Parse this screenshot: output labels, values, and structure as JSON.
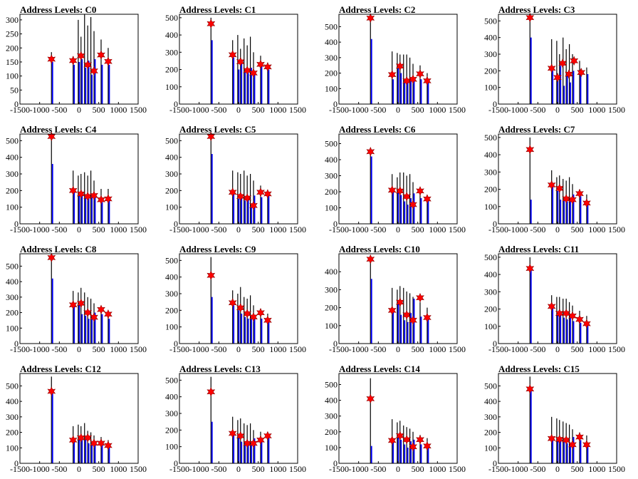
{
  "figure": {
    "x_ticks": [
      "-1500",
      "-1000",
      "-500",
      "0",
      "500",
      "1000",
      "1500"
    ],
    "colors": {
      "black_series": "#000000",
      "blue_series": "#0000ff",
      "marker_fill": "#ff0000",
      "marker_stroke": "#8b0000"
    }
  },
  "chart_data": [
    {
      "type": "bar",
      "title": "Address Levels: C0",
      "xlim": [
        -1500,
        1500
      ],
      "ylim": [
        0,
        320
      ],
      "yticks": [
        0,
        50,
        100,
        150,
        200,
        250,
        300
      ],
      "black_heights": [
        185,
        170,
        300,
        240,
        320,
        280,
        310,
        260,
        230,
        200
      ],
      "blue_heights": [
        150,
        140,
        150,
        160,
        130,
        155,
        105,
        160,
        140,
        140
      ],
      "peaks": [
        {
          "x": -700,
          "y": 160
        },
        {
          "x": -150,
          "y": 155
        },
        {
          "x": 50,
          "y": 172
        },
        {
          "x": 220,
          "y": 140
        },
        {
          "x": 380,
          "y": 118
        },
        {
          "x": 560,
          "y": 175
        },
        {
          "x": 740,
          "y": 152
        }
      ]
    },
    {
      "type": "bar",
      "title": "Address Levels: C1",
      "xlim": [
        -1500,
        1500
      ],
      "ylim": [
        0,
        520
      ],
      "yticks": [
        0,
        100,
        200,
        300,
        400,
        500
      ],
      "black_heights": [
        500,
        370,
        400,
        320,
        380,
        340,
        390,
        300,
        280,
        240
      ],
      "blue_heights": [
        370,
        270,
        200,
        240,
        200,
        180,
        210,
        180,
        220,
        200
      ],
      "peaks": [
        {
          "x": -700,
          "y": 465
        },
        {
          "x": -150,
          "y": 285
        },
        {
          "x": 50,
          "y": 245
        },
        {
          "x": 220,
          "y": 195
        },
        {
          "x": 380,
          "y": 180
        },
        {
          "x": 560,
          "y": 230
        },
        {
          "x": 740,
          "y": 215
        }
      ]
    },
    {
      "type": "bar",
      "title": "Address Levels: C2",
      "xlim": [
        -1500,
        1500
      ],
      "ylim": [
        0,
        580
      ],
      "yticks": [
        0,
        100,
        200,
        300,
        400,
        500
      ],
      "black_heights": [
        580,
        340,
        330,
        320,
        320,
        320,
        300,
        260,
        250,
        200
      ],
      "blue_heights": [
        420,
        160,
        230,
        200,
        160,
        140,
        160,
        170,
        160,
        140
      ],
      "peaks": [
        {
          "x": -700,
          "y": 555
        },
        {
          "x": -150,
          "y": 190
        },
        {
          "x": 50,
          "y": 245
        },
        {
          "x": 220,
          "y": 150
        },
        {
          "x": 380,
          "y": 160
        },
        {
          "x": 560,
          "y": 195
        },
        {
          "x": 740,
          "y": 150
        }
      ]
    },
    {
      "type": "bar",
      "title": "Address Levels: C3",
      "xlim": [
        -1500,
        1500
      ],
      "ylim": [
        0,
        540
      ],
      "yticks": [
        0,
        100,
        200,
        300,
        400,
        500
      ],
      "black_heights": [
        540,
        390,
        380,
        300,
        400,
        330,
        360,
        300,
        260,
        220
      ],
      "blue_heights": [
        400,
        200,
        150,
        230,
        110,
        170,
        130,
        200,
        180,
        180
      ],
      "peaks": [
        {
          "x": -700,
          "y": 520
        },
        {
          "x": -150,
          "y": 215
        },
        {
          "x": 0,
          "y": 160
        },
        {
          "x": 130,
          "y": 245
        },
        {
          "x": 290,
          "y": 180
        },
        {
          "x": 420,
          "y": 260
        },
        {
          "x": 600,
          "y": 190
        }
      ]
    },
    {
      "type": "bar",
      "title": "Address Levels: C4",
      "xlim": [
        -1500,
        1500
      ],
      "ylim": [
        0,
        540
      ],
      "yticks": [
        0,
        100,
        200,
        300,
        400,
        500
      ],
      "black_heights": [
        540,
        320,
        290,
        300,
        310,
        290,
        320,
        260,
        210,
        210
      ],
      "blue_heights": [
        360,
        200,
        170,
        170,
        160,
        150,
        170,
        160,
        130,
        140
      ],
      "peaks": [
        {
          "x": -700,
          "y": 525
        },
        {
          "x": -150,
          "y": 200
        },
        {
          "x": 50,
          "y": 180
        },
        {
          "x": 220,
          "y": 165
        },
        {
          "x": 380,
          "y": 170
        },
        {
          "x": 560,
          "y": 145
        },
        {
          "x": 740,
          "y": 150
        }
      ]
    },
    {
      "type": "bar",
      "title": "Address Levels: C5",
      "xlim": [
        -1500,
        1500
      ],
      "ylim": [
        0,
        540
      ],
      "yticks": [
        0,
        100,
        200,
        300,
        400,
        500
      ],
      "black_heights": [
        540,
        320,
        310,
        300,
        320,
        290,
        300,
        260,
        230,
        200
      ],
      "blue_heights": [
        420,
        190,
        150,
        160,
        140,
        150,
        110,
        170,
        160,
        170
      ],
      "peaks": [
        {
          "x": -700,
          "y": 525
        },
        {
          "x": -150,
          "y": 190
        },
        {
          "x": 50,
          "y": 165
        },
        {
          "x": 220,
          "y": 155
        },
        {
          "x": 380,
          "y": 110
        },
        {
          "x": 560,
          "y": 190
        },
        {
          "x": 740,
          "y": 180
        }
      ]
    },
    {
      "type": "bar",
      "title": "Address Levels: C6",
      "xlim": [
        -1500,
        1500
      ],
      "ylim": [
        0,
        560
      ],
      "yticks": [
        0,
        100,
        200,
        300,
        400,
        500
      ],
      "black_heights": [
        470,
        310,
        290,
        320,
        320,
        300,
        310,
        260,
        220,
        180
      ],
      "blue_heights": [
        420,
        200,
        200,
        180,
        140,
        120,
        160,
        190,
        160,
        150
      ],
      "peaks": [
        {
          "x": -700,
          "y": 450
        },
        {
          "x": -150,
          "y": 210
        },
        {
          "x": 50,
          "y": 205
        },
        {
          "x": 220,
          "y": 170
        },
        {
          "x": 380,
          "y": 120
        },
        {
          "x": 560,
          "y": 205
        },
        {
          "x": 740,
          "y": 155
        }
      ]
    },
    {
      "type": "bar",
      "title": "Address Levels: C7",
      "xlim": [
        -1500,
        1500
      ],
      "ylim": [
        0,
        520
      ],
      "yticks": [
        0,
        100,
        200,
        300,
        400,
        500
      ],
      "black_heights": [
        500,
        310,
        270,
        280,
        260,
        250,
        270,
        230,
        200,
        170
      ],
      "blue_heights": [
        140,
        220,
        190,
        140,
        140,
        130,
        130,
        170,
        160,
        120
      ],
      "peaks": [
        {
          "x": -700,
          "y": 430
        },
        {
          "x": -150,
          "y": 225
        },
        {
          "x": 50,
          "y": 205
        },
        {
          "x": 220,
          "y": 145
        },
        {
          "x": 380,
          "y": 140
        },
        {
          "x": 560,
          "y": 175
        },
        {
          "x": 740,
          "y": 120
        }
      ]
    },
    {
      "type": "bar",
      "title": "Address Levels: C8",
      "xlim": [
        -1500,
        1500
      ],
      "ylim": [
        0,
        580
      ],
      "yticks": [
        0,
        100,
        200,
        300,
        400,
        500
      ],
      "black_heights": [
        580,
        340,
        330,
        360,
        330,
        300,
        290,
        260,
        240,
        200
      ],
      "blue_heights": [
        420,
        240,
        250,
        190,
        180,
        160,
        180,
        200,
        190,
        160
      ],
      "peaks": [
        {
          "x": -700,
          "y": 555
        },
        {
          "x": -150,
          "y": 250
        },
        {
          "x": 50,
          "y": 260
        },
        {
          "x": 220,
          "y": 200
        },
        {
          "x": 380,
          "y": 170
        },
        {
          "x": 560,
          "y": 220
        },
        {
          "x": 740,
          "y": 190
        }
      ]
    },
    {
      "type": "bar",
      "title": "Address Levels: C9",
      "xlim": [
        -1500,
        1500
      ],
      "ylim": [
        0,
        540
      ],
      "yticks": [
        0,
        100,
        200,
        300,
        400,
        500
      ],
      "black_heights": [
        520,
        320,
        300,
        340,
        280,
        270,
        290,
        230,
        210,
        180
      ],
      "blue_heights": [
        280,
        230,
        200,
        180,
        160,
        150,
        160,
        170,
        150,
        140
      ],
      "peaks": [
        {
          "x": -700,
          "y": 410
        },
        {
          "x": -150,
          "y": 245
        },
        {
          "x": 50,
          "y": 215
        },
        {
          "x": 220,
          "y": 180
        },
        {
          "x": 380,
          "y": 160
        },
        {
          "x": 560,
          "y": 185
        },
        {
          "x": 740,
          "y": 140
        }
      ]
    },
    {
      "type": "bar",
      "title": "Address Levels: C10",
      "xlim": [
        -1500,
        1500
      ],
      "ylim": [
        0,
        500
      ],
      "yticks": [
        0,
        100,
        200,
        300,
        400
      ],
      "black_heights": [
        480,
        310,
        300,
        320,
        310,
        290,
        280,
        260,
        230,
        200
      ],
      "blue_heights": [
        360,
        180,
        230,
        160,
        130,
        120,
        170,
        250,
        150,
        140
      ],
      "peaks": [
        {
          "x": -700,
          "y": 470
        },
        {
          "x": -150,
          "y": 185
        },
        {
          "x": 50,
          "y": 230
        },
        {
          "x": 220,
          "y": 160
        },
        {
          "x": 380,
          "y": 130
        },
        {
          "x": 560,
          "y": 255
        },
        {
          "x": 740,
          "y": 145
        }
      ]
    },
    {
      "type": "bar",
      "title": "Address Levels: C11",
      "xlim": [
        -1500,
        1500
      ],
      "ylim": [
        0,
        520
      ],
      "yticks": [
        0,
        100,
        200,
        300,
        400,
        500
      ],
      "black_heights": [
        500,
        280,
        270,
        270,
        260,
        260,
        240,
        220,
        190,
        160
      ],
      "blue_heights": [
        430,
        210,
        180,
        170,
        150,
        140,
        150,
        130,
        120,
        120
      ],
      "peaks": [
        {
          "x": -700,
          "y": 435
        },
        {
          "x": -150,
          "y": 215
        },
        {
          "x": 50,
          "y": 175
        },
        {
          "x": 220,
          "y": 175
        },
        {
          "x": 380,
          "y": 160
        },
        {
          "x": 560,
          "y": 140
        },
        {
          "x": 740,
          "y": 115
        }
      ]
    },
    {
      "type": "bar",
      "title": "Address Levels: C12",
      "xlim": [
        -1500,
        1500
      ],
      "ylim": [
        0,
        580
      ],
      "yticks": [
        0,
        100,
        200,
        300,
        400,
        500
      ],
      "black_heights": [
        560,
        240,
        250,
        240,
        260,
        210,
        200,
        180,
        170,
        150
      ],
      "blue_heights": [
        450,
        150,
        160,
        150,
        160,
        130,
        120,
        140,
        130,
        110
      ],
      "peaks": [
        {
          "x": -700,
          "y": 465
        },
        {
          "x": -150,
          "y": 150
        },
        {
          "x": 50,
          "y": 165
        },
        {
          "x": 220,
          "y": 165
        },
        {
          "x": 380,
          "y": 130
        },
        {
          "x": 560,
          "y": 130
        },
        {
          "x": 740,
          "y": 115
        }
      ]
    },
    {
      "type": "bar",
      "title": "Address Levels: C13",
      "xlim": [
        -1500,
        1500
      ],
      "ylim": [
        0,
        540
      ],
      "yticks": [
        0,
        100,
        200,
        300,
        400,
        500
      ],
      "black_heights": [
        520,
        280,
        260,
        270,
        240,
        230,
        240,
        200,
        190,
        170
      ],
      "blue_heights": [
        250,
        180,
        160,
        130,
        130,
        120,
        110,
        150,
        150,
        160
      ],
      "peaks": [
        {
          "x": -700,
          "y": 430
        },
        {
          "x": -150,
          "y": 180
        },
        {
          "x": 50,
          "y": 165
        },
        {
          "x": 220,
          "y": 120
        },
        {
          "x": 380,
          "y": 120
        },
        {
          "x": 560,
          "y": 140
        },
        {
          "x": 740,
          "y": 165
        }
      ]
    },
    {
      "type": "bar",
      "title": "Address Levels: C14",
      "xlim": [
        -1500,
        1500
      ],
      "ylim": [
        0,
        570
      ],
      "yticks": [
        0,
        100,
        200,
        300,
        400,
        500
      ],
      "black_heights": [
        540,
        280,
        260,
        270,
        240,
        230,
        220,
        200,
        180,
        160
      ],
      "blue_heights": [
        110,
        140,
        170,
        150,
        120,
        100,
        140,
        150,
        120,
        110
      ],
      "peaks": [
        {
          "x": -700,
          "y": 410
        },
        {
          "x": -150,
          "y": 145
        },
        {
          "x": 50,
          "y": 175
        },
        {
          "x": 220,
          "y": 150
        },
        {
          "x": 380,
          "y": 105
        },
        {
          "x": 560,
          "y": 150
        },
        {
          "x": 740,
          "y": 110
        }
      ]
    },
    {
      "type": "bar",
      "title": "Address Levels: C15",
      "xlim": [
        -1500,
        1500
      ],
      "ylim": [
        0,
        580
      ],
      "yticks": [
        0,
        100,
        200,
        300,
        400,
        500
      ],
      "black_heights": [
        560,
        300,
        290,
        280,
        270,
        260,
        250,
        220,
        200,
        180
      ],
      "blue_heights": [
        470,
        160,
        160,
        150,
        140,
        130,
        130,
        170,
        150,
        120
      ],
      "peaks": [
        {
          "x": -700,
          "y": 480
        },
        {
          "x": -150,
          "y": 160
        },
        {
          "x": 50,
          "y": 155
        },
        {
          "x": 220,
          "y": 150
        },
        {
          "x": 380,
          "y": 120
        },
        {
          "x": 560,
          "y": 170
        },
        {
          "x": 740,
          "y": 120
        }
      ]
    }
  ]
}
